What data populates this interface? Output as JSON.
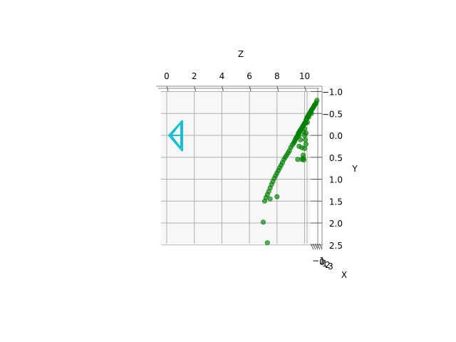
{
  "chart_data": {
    "type": "scatter",
    "projection": "3d",
    "axes": {
      "z": {
        "label": "Z",
        "ticks": [
          "0",
          "2",
          "4",
          "6",
          "8",
          "10"
        ],
        "range": [
          -0.5,
          11
        ]
      },
      "y": {
        "label": "Y",
        "ticks": [
          "−1.0",
          "−0.5",
          "0.0",
          "0.5",
          "1.0",
          "1.5",
          "2.0",
          "2.5"
        ],
        "range": [
          -1.1,
          2.6
        ]
      },
      "x": {
        "label": "X",
        "ticks": [
          "−1",
          "0",
          "1",
          "2",
          "3"
        ]
      }
    },
    "grid": true,
    "colors": {
      "points": "#008000",
      "camera": "#17becf",
      "pane": "#f2f2f2",
      "grid": "#b0b0b0"
    },
    "camera_glyph": {
      "name": "camera-frustum-icon",
      "position_zy": [
        1.0,
        0.0
      ]
    },
    "series": [
      {
        "points_zy": [
          [
            10.9,
            -0.8
          ],
          [
            10.85,
            -0.75
          ],
          [
            10.8,
            -0.72
          ],
          [
            10.75,
            -0.7
          ],
          [
            10.7,
            -0.68
          ],
          [
            10.65,
            -0.65
          ],
          [
            10.6,
            -0.62
          ],
          [
            10.55,
            -0.6
          ],
          [
            10.5,
            -0.58
          ],
          [
            10.45,
            -0.55
          ],
          [
            10.4,
            -0.52
          ],
          [
            10.35,
            -0.5
          ],
          [
            10.3,
            -0.47
          ],
          [
            10.25,
            -0.44
          ],
          [
            10.2,
            -0.42
          ],
          [
            10.15,
            -0.38
          ],
          [
            10.1,
            -0.35
          ],
          [
            10.05,
            -0.3
          ],
          [
            10.0,
            -0.28
          ],
          [
            9.95,
            -0.25
          ],
          [
            9.9,
            -0.22
          ],
          [
            9.85,
            -0.2
          ],
          [
            9.8,
            -0.17
          ],
          [
            9.75,
            -0.15
          ],
          [
            9.7,
            -0.12
          ],
          [
            9.65,
            -0.1
          ],
          [
            9.6,
            -0.07
          ],
          [
            9.55,
            -0.05
          ],
          [
            9.5,
            0.0
          ],
          [
            9.45,
            0.03
          ],
          [
            9.4,
            0.05
          ],
          [
            9.35,
            0.08
          ],
          [
            9.3,
            0.12
          ],
          [
            9.25,
            0.15
          ],
          [
            9.2,
            0.18
          ],
          [
            9.1,
            0.22
          ],
          [
            9.0,
            0.28
          ],
          [
            8.9,
            0.35
          ],
          [
            8.8,
            0.4
          ],
          [
            8.7,
            0.45
          ],
          [
            8.6,
            0.5
          ],
          [
            8.5,
            0.55
          ],
          [
            8.4,
            0.62
          ],
          [
            8.3,
            0.68
          ],
          [
            8.2,
            0.74
          ],
          [
            8.1,
            0.8
          ],
          [
            8.0,
            0.86
          ],
          [
            7.9,
            0.92
          ],
          [
            7.8,
            0.98
          ],
          [
            7.7,
            1.05
          ],
          [
            7.6,
            1.12
          ],
          [
            7.5,
            1.2
          ],
          [
            7.4,
            1.28
          ],
          [
            7.3,
            1.35
          ],
          [
            7.2,
            1.42
          ],
          [
            7.1,
            1.5
          ],
          [
            10.5,
            -0.5
          ],
          [
            10.3,
            -0.42
          ],
          [
            10.1,
            -0.28
          ],
          [
            10.2,
            -0.3
          ],
          [
            10.0,
            -0.15
          ],
          [
            10.1,
            -0.05
          ],
          [
            10.0,
            0.0
          ],
          [
            9.9,
            -0.08
          ],
          [
            10.05,
            0.1
          ],
          [
            10.1,
            0.2
          ],
          [
            9.6,
            0.25
          ],
          [
            9.8,
            0.28
          ],
          [
            9.5,
            0.55
          ],
          [
            9.8,
            0.55
          ],
          [
            9.9,
            0.52
          ],
          [
            9.95,
            0.56
          ],
          [
            9.9,
            0.45
          ],
          [
            10.0,
            0.3
          ],
          [
            9.7,
            0.1
          ],
          [
            9.6,
            0.0
          ],
          [
            8.0,
            1.4
          ],
          [
            7.5,
            1.45
          ],
          [
            7.0,
            1.98
          ],
          [
            7.3,
            2.45
          ]
        ]
      }
    ]
  }
}
